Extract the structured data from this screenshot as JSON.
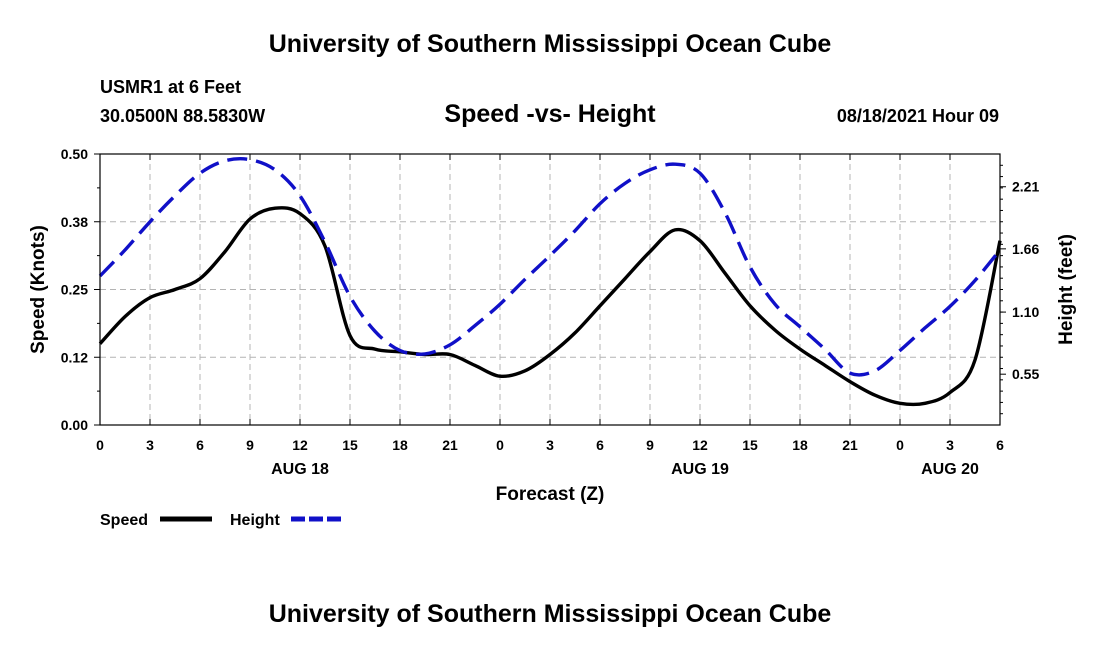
{
  "page": {
    "title": "University of Southern Mississippi Ocean Cube",
    "footer_title": "University of Southern Mississippi Ocean Cube",
    "station_name": "USMR1 at 6 Feet",
    "station_coords": "30.0500N  88.5830W",
    "forecast_datetime": "08/18/2021 Hour 09"
  },
  "colors": {
    "speed": "#000000",
    "height": "#1010c8",
    "grid": "#b4b4b4"
  },
  "chart_data": {
    "type": "line",
    "title": "Speed -vs- Height",
    "xlabel": "Forecast (Z)",
    "ylabel": "Speed (Knots)",
    "y2label": "Height (feet)",
    "xlim": [
      0,
      54
    ],
    "ylim": [
      0,
      0.5
    ],
    "y2lim": [
      0.1,
      2.5
    ],
    "x_ticks": [
      0,
      3,
      6,
      9,
      12,
      15,
      18,
      21,
      24,
      27,
      30,
      33,
      36,
      39,
      42,
      45,
      48,
      51,
      54
    ],
    "x_tick_labels": [
      "0",
      "3",
      "6",
      "9",
      "12",
      "15",
      "18",
      "21",
      "0",
      "3",
      "6",
      "9",
      "12",
      "15",
      "18",
      "21",
      "0",
      "3",
      "6"
    ],
    "y_ticks": [
      0,
      0.125,
      0.25,
      0.375,
      0.5
    ],
    "y_tick_labels": [
      "0.00",
      "0.12",
      "0.25",
      "0.38",
      "0.50"
    ],
    "y2_ticks": [
      0.55,
      1.1,
      1.66,
      2.21
    ],
    "y2_tick_labels": [
      "0.55",
      "1.10",
      "1.66",
      "2.21"
    ],
    "date_labels": [
      {
        "x": 12,
        "label": "AUG 18"
      },
      {
        "x": 36,
        "label": "AUG 19"
      },
      {
        "x": 51,
        "label": "AUG 20"
      }
    ],
    "legend": {
      "position": "bottom-left",
      "entries": [
        "Speed",
        "Height"
      ]
    },
    "series": [
      {
        "name": "Speed",
        "axis": "left",
        "style": "solid",
        "x": [
          0,
          1.5,
          3,
          4.5,
          6,
          7.5,
          9,
          10.5,
          12,
          13.5,
          15,
          16.5,
          18,
          19.5,
          21,
          22.5,
          24,
          25.5,
          27,
          28.5,
          30,
          31.5,
          33,
          34.5,
          36,
          37.5,
          39,
          40.5,
          42,
          43.5,
          45,
          46.5,
          48,
          49.5,
          51,
          52.5,
          54
        ],
        "values": [
          0.15,
          0.2,
          0.235,
          0.25,
          0.27,
          0.32,
          0.38,
          0.4,
          0.39,
          0.33,
          0.165,
          0.14,
          0.135,
          0.13,
          0.13,
          0.11,
          0.09,
          0.1,
          0.13,
          0.17,
          0.22,
          0.27,
          0.32,
          0.36,
          0.34,
          0.28,
          0.22,
          0.175,
          0.14,
          0.11,
          0.08,
          0.055,
          0.04,
          0.04,
          0.06,
          0.12,
          0.34
        ]
      },
      {
        "name": "Height",
        "axis": "right",
        "style": "dashed",
        "x": [
          0,
          1.5,
          3,
          4.5,
          6,
          7.5,
          9,
          10.5,
          12,
          13.5,
          15,
          16.5,
          18,
          19.5,
          21,
          22.5,
          24,
          25.5,
          27,
          28.5,
          30,
          31.5,
          33,
          34.5,
          36,
          37.5,
          39,
          40.5,
          42,
          43.5,
          45,
          46.5,
          48,
          49.5,
          51,
          52.5,
          54
        ],
        "values": [
          1.42,
          1.65,
          1.9,
          2.13,
          2.33,
          2.44,
          2.45,
          2.36,
          2.13,
          1.72,
          1.24,
          0.93,
          0.76,
          0.73,
          0.81,
          0.98,
          1.17,
          1.39,
          1.6,
          1.82,
          2.06,
          2.24,
          2.36,
          2.41,
          2.33,
          1.98,
          1.5,
          1.17,
          0.97,
          0.77,
          0.56,
          0.58,
          0.76,
          0.96,
          1.15,
          1.38,
          1.65
        ]
      }
    ]
  }
}
